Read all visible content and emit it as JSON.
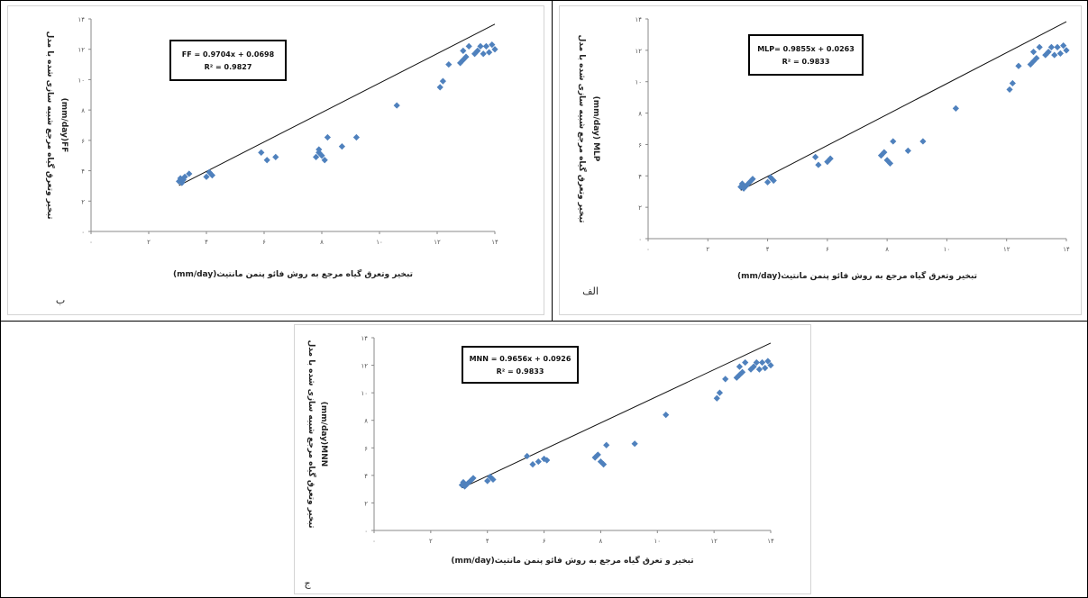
{
  "colors": {
    "point": "#4f81bd",
    "trend": "#111111",
    "axis": "#888888"
  },
  "chart_data": [
    {
      "id": "FF",
      "type": "scatter",
      "panel_letter": "ب",
      "equation": "FF = 0.9704x + 0.0698",
      "r2": "R² = 0.9827",
      "xlabel": "تبخیر وتعرق گیاه مرجع به روش فائو پنمن مانتیث(mm/day)",
      "ylabel_line1": "تبخیر وتعرق گیاه مرجع شبیه سازی شده با مدل",
      "ylabel_line2": "(mm/day)FF",
      "xlim": [
        0,
        14
      ],
      "ylim": [
        0,
        14
      ],
      "xticks": [
        "۰",
        "۲",
        "۴",
        "۶",
        "۸",
        "۱۰",
        "۱۲",
        "۱۴"
      ],
      "yticks": [
        "۰",
        "۲",
        "۴",
        "۶",
        "۸",
        "۱۰",
        "۱۲",
        "۱۴"
      ],
      "slope": 0.9704,
      "intercept": 0.0698,
      "x": [
        3.05,
        3.1,
        3.15,
        3.2,
        3.25,
        3.4,
        4.0,
        4.1,
        4.2,
        5.9,
        6.1,
        6.4,
        7.8,
        7.9,
        7.9,
        8.0,
        8.1,
        8.2,
        8.7,
        9.2,
        10.6,
        12.1,
        12.2,
        12.4,
        12.8,
        12.9,
        12.9,
        13.0,
        13.1,
        13.3,
        13.4,
        13.5,
        13.6,
        13.7,
        13.8,
        13.9,
        14.0
      ],
      "y": [
        3.3,
        3.5,
        3.2,
        3.4,
        3.6,
        3.8,
        3.6,
        3.9,
        3.7,
        5.2,
        4.7,
        4.9,
        4.9,
        5.2,
        5.4,
        5.0,
        4.7,
        6.2,
        5.6,
        6.2,
        8.3,
        9.5,
        9.9,
        11.0,
        11.1,
        11.3,
        11.9,
        11.5,
        12.2,
        11.7,
        11.9,
        12.2,
        11.7,
        12.2,
        11.8,
        12.3,
        12.0
      ]
    },
    {
      "id": "MLP",
      "type": "scatter",
      "panel_letter": "الف",
      "equation": "MLP= 0.9855x + 0.0263",
      "r2": "R² = 0.9833",
      "xlabel": "تبخیر وتعرق گیاه مرجع به روش فائو پنمن مانتیث(mm/day)",
      "ylabel_line1": "تبخیر وتعرق گیاه مرجع شبیه سازی شده با مدل",
      "ylabel_line2": "(mm/day) MLP",
      "xlim": [
        0,
        14
      ],
      "ylim": [
        0,
        14
      ],
      "xticks": [
        "۰",
        "۲",
        "۴",
        "۶",
        "۸",
        "۱۰",
        "۱۲",
        "۱۴"
      ],
      "yticks": [
        "۰",
        "۲",
        "۴",
        "۶",
        "۸",
        "۱۰",
        "۱۲",
        "۱۴"
      ],
      "slope": 0.9855,
      "intercept": 0.0263,
      "x": [
        3.1,
        3.15,
        3.2,
        3.3,
        3.4,
        3.5,
        4.0,
        4.1,
        4.2,
        5.6,
        5.7,
        6.0,
        6.1,
        7.8,
        7.9,
        8.0,
        8.1,
        8.2,
        8.7,
        9.2,
        10.3,
        12.1,
        12.2,
        12.4,
        12.8,
        12.9,
        12.9,
        13.0,
        13.1,
        13.3,
        13.4,
        13.5,
        13.6,
        13.7,
        13.8,
        13.9,
        14.0
      ],
      "y": [
        3.3,
        3.5,
        3.2,
        3.4,
        3.6,
        3.8,
        3.6,
        3.9,
        3.7,
        5.2,
        4.7,
        4.9,
        5.1,
        5.3,
        5.5,
        5.0,
        4.8,
        6.2,
        5.6,
        6.2,
        8.3,
        9.5,
        9.9,
        11.0,
        11.1,
        11.3,
        11.9,
        11.5,
        12.2,
        11.7,
        11.9,
        12.2,
        11.7,
        12.2,
        11.8,
        12.3,
        12.0
      ]
    },
    {
      "id": "MNN",
      "type": "scatter",
      "panel_letter": "ج",
      "equation": "MNN = 0.9656x + 0.0926",
      "r2": "R² = 0.9833",
      "xlabel": "تبخیر و تعرق گیاه مرجع به روش فائو پنمن مانتیث(mm/day)",
      "ylabel_line1": "تبخیر وتعرق گیاه مرجع شبیه سازی شده با مدل",
      "ylabel_line2": "(mm/day)MNN",
      "xlim": [
        0,
        14
      ],
      "ylim": [
        0,
        14
      ],
      "xticks": [
        "۰",
        "۲",
        "۴",
        "۶",
        "۸",
        "۱۰",
        "۱۲",
        "۱۴"
      ],
      "yticks": [
        "۰",
        "۲",
        "۴",
        "۶",
        "۸",
        "۱۰",
        "۱۲",
        "۱۴"
      ],
      "slope": 0.9656,
      "intercept": 0.0926,
      "x": [
        3.1,
        3.15,
        3.2,
        3.3,
        3.4,
        3.5,
        4.0,
        4.1,
        4.2,
        5.4,
        5.6,
        5.8,
        6.0,
        6.1,
        7.8,
        7.9,
        8.0,
        8.1,
        8.2,
        9.2,
        10.3,
        12.1,
        12.2,
        12.4,
        12.8,
        12.9,
        12.9,
        13.0,
        13.1,
        13.3,
        13.4,
        13.5,
        13.6,
        13.7,
        13.8,
        13.9,
        14.0
      ],
      "y": [
        3.3,
        3.5,
        3.2,
        3.4,
        3.6,
        3.8,
        3.6,
        3.9,
        3.7,
        5.4,
        4.8,
        5.0,
        5.2,
        5.1,
        5.3,
        5.5,
        5.0,
        4.8,
        6.2,
        6.3,
        8.4,
        9.6,
        10.0,
        11.0,
        11.1,
        11.3,
        11.9,
        11.5,
        12.2,
        11.7,
        11.9,
        12.2,
        11.7,
        12.2,
        11.8,
        12.3,
        12.0
      ]
    }
  ]
}
